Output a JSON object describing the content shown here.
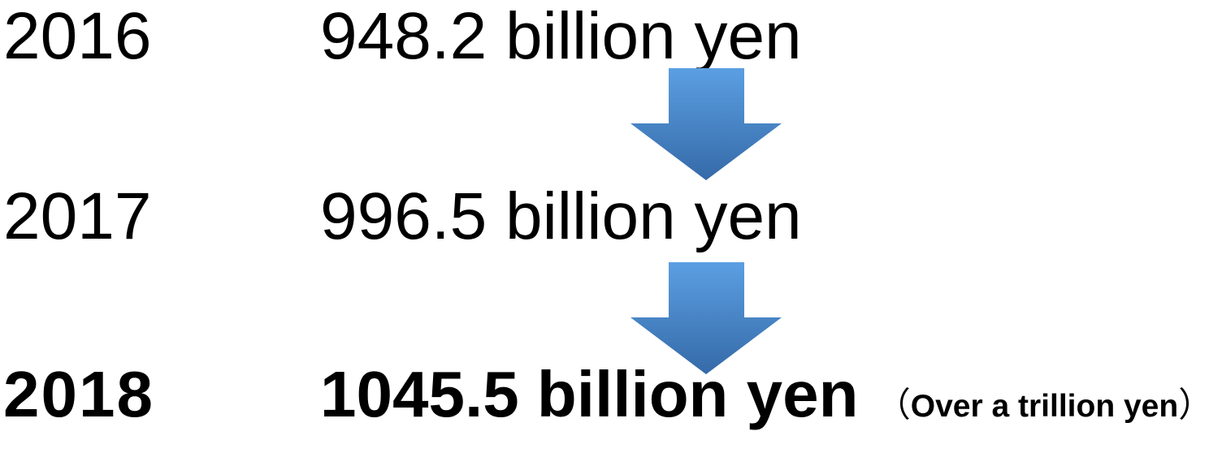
{
  "rows": [
    {
      "year": "2016",
      "amount": "948.2 billion yen"
    },
    {
      "year": "2017",
      "amount": "996.5 billion yen"
    },
    {
      "year": "2018",
      "amount": "1045.5 billion yen",
      "note": "Over a trillion yen",
      "note_open": "（",
      "note_close": "）"
    }
  ],
  "colors": {
    "arrow_top": "#5a9ee0",
    "arrow_bottom": "#3a6fad",
    "text": "#000000"
  }
}
